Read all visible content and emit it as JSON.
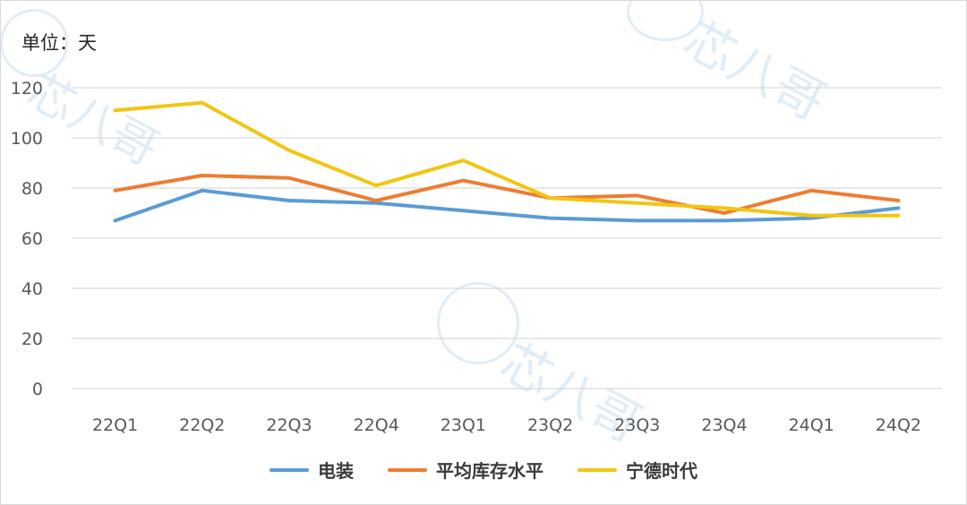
{
  "unit_label": "单位：天",
  "watermark_text": "芯八哥",
  "chart_data": {
    "type": "line",
    "categories": [
      "22Q1",
      "22Q2",
      "22Q3",
      "22Q4",
      "23Q1",
      "23Q2",
      "23Q3",
      "23Q4",
      "24Q1",
      "24Q2"
    ],
    "ylim": [
      0,
      120
    ],
    "yticks": [
      0,
      20,
      40,
      60,
      80,
      100,
      120
    ],
    "grid": true,
    "legend_position": "bottom",
    "series": [
      {
        "name": "电装",
        "color": "#5b9bd5",
        "values": [
          67,
          79,
          75,
          74,
          71,
          68,
          67,
          67,
          68,
          72
        ]
      },
      {
        "name": "平均库存水平",
        "color": "#ed7d31",
        "values": [
          79,
          85,
          84,
          75,
          83,
          76,
          77,
          70,
          79,
          75
        ]
      },
      {
        "name": "宁德时代",
        "color": "#f2c511",
        "values": [
          111,
          114,
          95,
          81,
          91,
          76,
          74,
          72,
          69,
          69
        ]
      }
    ]
  }
}
